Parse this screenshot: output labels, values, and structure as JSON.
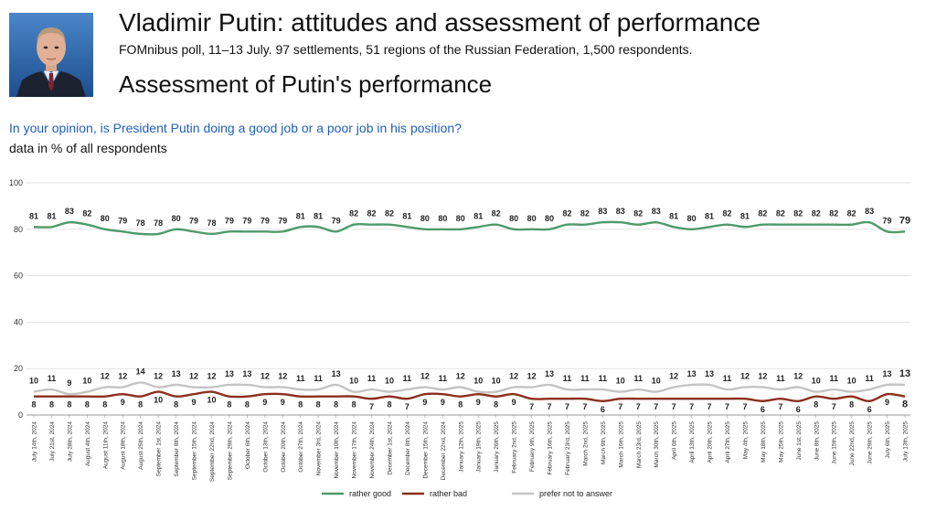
{
  "header": {
    "title": "Vladimir Putin: attitudes and assessment of performance",
    "subtitle": "FOMnibus poll, 11–13 July. 97 settlements, 51 regions of the Russian Federation, 1,500 respondents.",
    "section_title": "Assessment of Putin's performance",
    "question": "In your opinion, is President Putin doing a good job or a poor job in his position?",
    "note": "data in % of all respondents",
    "colors": {
      "question": "#1f5fbf"
    }
  },
  "chart_data": {
    "type": "line",
    "title": "Assessment of Putin's performance",
    "xlabel": "",
    "ylabel": "",
    "ylim": [
      0,
      100
    ],
    "yticks": [
      "0",
      "20",
      "40",
      "60",
      "80",
      "100"
    ],
    "grid": true,
    "legend_position": "bottom",
    "categories": [
      "July 14th, 2024",
      "July 21st, 2024",
      "July 28th, 2024",
      "August 4th, 2024",
      "August 11th, 2024",
      "August 18th, 2024",
      "August 25th, 2024",
      "September 1st, 2024",
      "September 8th, 2024",
      "September 15th, 2024",
      "September 22nd, 2024",
      "September 29th, 2024",
      "October 6th, 2024",
      "October 13th, 2024",
      "October 20th, 2024",
      "October 27th, 2024",
      "November 3rd, 2024",
      "November 10th, 2024",
      "November 17th, 2024",
      "November 24th, 2024",
      "December 1st, 2024",
      "December 8th, 2024",
      "December 15th, 2024",
      "December 22nd, 2024",
      "January 12th, 2025",
      "January 19th, 2025",
      "January 26th, 2025",
      "February 2nd, 2025",
      "February 9th, 2025",
      "February 16th, 2025",
      "February 23rd, 2025",
      "March 2nd, 2025",
      "March 9th, 2025",
      "March 16th, 2025",
      "March 23rd, 2025",
      "March 30th, 2025",
      "April 6th, 2025",
      "April 13th, 2025",
      "April 20th, 2025",
      "April 27th, 2025",
      "May 4th, 2025",
      "May 18th, 2025",
      "May 25th, 2025",
      "June 1st, 2025",
      "June 8th, 2025",
      "June 15th, 2025",
      "June 22nd, 2025",
      "June 29th, 2025",
      "July 6th, 2025",
      "July 13th, 2025"
    ],
    "series": [
      {
        "name": "rather good",
        "color": "#4f9a6a",
        "values": [
          81,
          81,
          83,
          82,
          80,
          79,
          78,
          78,
          80,
          79,
          78,
          79,
          79,
          79,
          79,
          81,
          81,
          79,
          82,
          82,
          82,
          81,
          80,
          80,
          80,
          81,
          82,
          80,
          80,
          80,
          82,
          82,
          83,
          83,
          82,
          83,
          81,
          80,
          81,
          82,
          81,
          82,
          82,
          82,
          82,
          82,
          82,
          83,
          79,
          79
        ]
      },
      {
        "name": "rather bad",
        "color": "#8b2e1e",
        "values": [
          8,
          8,
          8,
          8,
          8,
          9,
          8,
          10,
          8,
          9,
          10,
          8,
          8,
          9,
          9,
          8,
          8,
          8,
          8,
          7,
          8,
          7,
          9,
          9,
          8,
          9,
          8,
          9,
          7,
          7,
          7,
          7,
          6,
          7,
          7,
          7,
          7,
          7,
          7,
          7,
          7,
          6,
          7,
          6,
          8,
          7,
          8,
          6,
          9,
          8
        ]
      },
      {
        "name": "prefer not to answer",
        "color": "#c4c4c4",
        "values": [
          10,
          11,
          9,
          10,
          12,
          12,
          14,
          12,
          13,
          12,
          12,
          13,
          13,
          12,
          12,
          11,
          11,
          13,
          10,
          11,
          10,
          11,
          12,
          11,
          12,
          10,
          10,
          12,
          12,
          13,
          11,
          11,
          11,
          10,
          11,
          10,
          12,
          13,
          13,
          11,
          12,
          12,
          11,
          12,
          10,
          11,
          10,
          11,
          13,
          13
        ]
      }
    ]
  }
}
